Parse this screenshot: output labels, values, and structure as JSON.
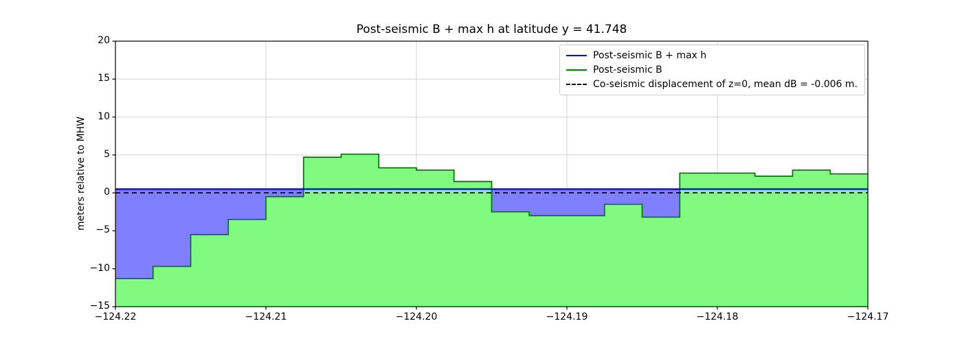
{
  "colors": {
    "land_fill": "#80fa80",
    "land_edge": "#008000",
    "water_fill": "#8080ff",
    "hline_blue": "#0000ff",
    "dashed_black": "#000000",
    "grid": "#d3d3d3",
    "frame": "#000000"
  },
  "legend": {
    "entries": [
      {
        "label": "Post-seismic B + max h",
        "style": "blue-solid"
      },
      {
        "label": "Post-seismic B",
        "style": "green-solid"
      },
      {
        "label": "Co-seismic displacement of z=0, mean dB = -0.006 m.",
        "style": "black-dashed"
      }
    ]
  },
  "chart_data": {
    "type": "area",
    "title": "Post-seismic B + max h at latitude y = 41.748",
    "xlabel": "",
    "ylabel": "meters relative to MHW",
    "xlim": [
      -124.22,
      -124.17
    ],
    "ylim": [
      -15,
      20
    ],
    "grid": true,
    "legend_position": "upper right",
    "xticks": [
      -124.22,
      -124.21,
      -124.2,
      -124.19,
      -124.18,
      -124.17
    ],
    "xtick_labels": [
      "−124.22",
      "−124.21",
      "−124.20",
      "−124.19",
      "−124.18",
      "−124.17"
    ],
    "yticks": [
      -15,
      -10,
      -5,
      0,
      5,
      10,
      15,
      20
    ],
    "ytick_labels": [
      "−15",
      "−10",
      "−5",
      "0",
      "5",
      "10",
      "15",
      "20"
    ],
    "series": [
      {
        "name": "Post-seismic B + max h",
        "type": "hline",
        "value": 0.5
      },
      {
        "name": "Post-seismic B",
        "type": "step-area",
        "x_edges": [
          -124.22,
          -124.2175,
          -124.215,
          -124.2125,
          -124.21,
          -124.2075,
          -124.205,
          -124.2025,
          -124.2,
          -124.1975,
          -124.195,
          -124.1925,
          -124.19,
          -124.1875,
          -124.185,
          -124.1825,
          -124.18,
          -124.1775,
          -124.175,
          -124.1725,
          -124.17
        ],
        "values": [
          -11.3,
          -9.7,
          -5.5,
          -3.5,
          -0.5,
          4.7,
          5.1,
          3.3,
          3.0,
          1.5,
          -2.5,
          -3.0,
          -3.0,
          -1.5,
          -3.2,
          2.6,
          2.6,
          2.2,
          3.0,
          2.5
        ]
      },
      {
        "name": "Co-seismic displacement of z=0, mean dB = -0.006 m.",
        "type": "hline-dashed",
        "value": 0,
        "mean_dB": -0.006
      }
    ]
  }
}
